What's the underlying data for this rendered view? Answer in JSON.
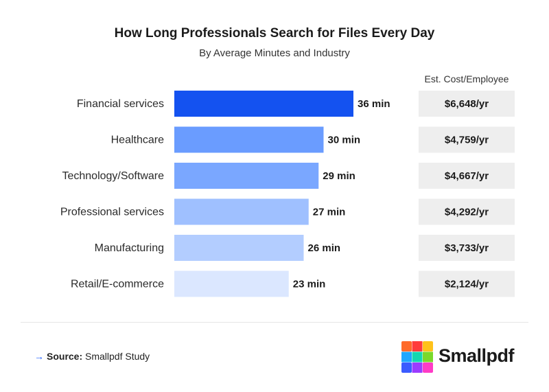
{
  "title": "How Long Professionals Search for Files Every Day",
  "subtitle": "By Average Minutes and Industry",
  "cost_header": "Est. Cost/Employee",
  "source": {
    "prefix": "Source:",
    "text": "Smallpdf Study"
  },
  "brand": {
    "name": "Smallpdf"
  },
  "colors": {
    "bars": [
      "#1452f0",
      "#6a9cff",
      "#7aa7ff",
      "#9fc0ff",
      "#b3cdff",
      "#dbe7ff"
    ],
    "cost_box": "#eeeeee"
  },
  "chart_data": {
    "type": "bar",
    "orientation": "horizontal",
    "categories": [
      "Financial services",
      "Healthcare",
      "Technology/Software",
      "Professional services",
      "Manufacturing",
      "Retail/E-commerce"
    ],
    "values": [
      36,
      30,
      29,
      27,
      26,
      23
    ],
    "value_labels": [
      "36 min",
      "30 min",
      "29 min",
      "27 min",
      "26 min",
      "23 min"
    ],
    "unit": "min",
    "cost_labels": [
      "$6,648/yr",
      "$4,759/yr",
      "$4,667/yr",
      "$4,292/yr",
      "$3,733/yr",
      "$2,124/yr"
    ],
    "xlim": [
      0,
      36
    ],
    "grid": false
  }
}
